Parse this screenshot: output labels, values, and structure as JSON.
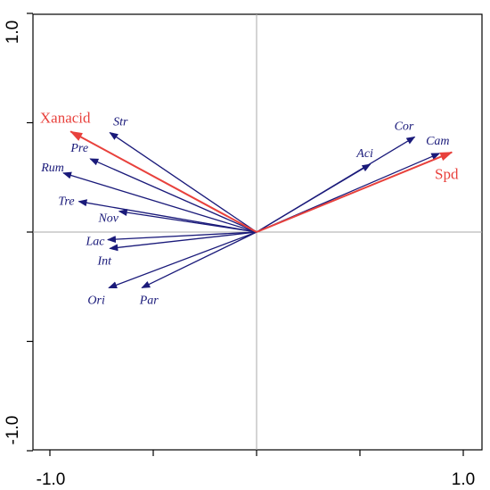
{
  "chart_data": {
    "type": "biplot",
    "title": "",
    "xlabel": "",
    "ylabel": "",
    "xlim": [
      -1.0,
      1.0
    ],
    "ylim": [
      -1.0,
      1.0
    ],
    "x_tick_labels": [
      {
        "value": -1.0,
        "text": "-1.0"
      },
      {
        "value": 1.0,
        "text": "1.0"
      }
    ],
    "y_tick_labels": [
      {
        "value": 1.0,
        "text": "1.0"
      },
      {
        "value": -1.0,
        "text": "-1.0"
      }
    ],
    "minor_ticks": [
      -0.5,
      0.0,
      0.5
    ],
    "species_color": "#1a1a7a",
    "env_color": "#e8413c",
    "species_arrows": [
      {
        "name": "Str",
        "x": -0.71,
        "y": 0.455
      },
      {
        "name": "Pre",
        "x": -0.805,
        "y": 0.335
      },
      {
        "name": "Rum",
        "x": -0.935,
        "y": 0.27
      },
      {
        "name": "Tre",
        "x": -0.86,
        "y": 0.14
      },
      {
        "name": "Nov",
        "x": -0.665,
        "y": 0.095
      },
      {
        "name": "Lac",
        "x": -0.72,
        "y": -0.035
      },
      {
        "name": "Int",
        "x": -0.71,
        "y": -0.075
      },
      {
        "name": "Ori",
        "x": -0.715,
        "y": -0.255
      },
      {
        "name": "Par",
        "x": -0.555,
        "y": -0.255
      },
      {
        "name": "Aci",
        "x": 0.55,
        "y": 0.31
      },
      {
        "name": "Cor",
        "x": 0.765,
        "y": 0.435
      },
      {
        "name": "Cam",
        "x": 0.885,
        "y": 0.36
      }
    ],
    "env_arrows": [
      {
        "name": "Xanacid",
        "x": -0.9,
        "y": 0.46
      },
      {
        "name": "Spd",
        "x": 0.945,
        "y": 0.365
      }
    ]
  }
}
